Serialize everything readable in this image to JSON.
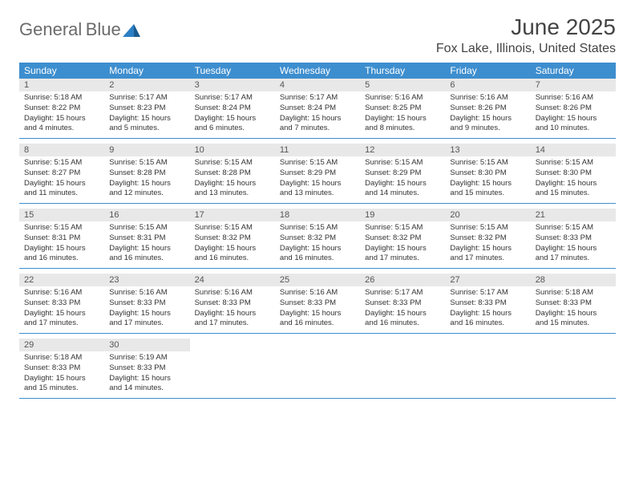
{
  "logo": {
    "line1": "General",
    "line2": "Blue"
  },
  "title": "June 2025",
  "location": "Fox Lake, Illinois, United States",
  "colors": {
    "header_bg": "#3d8ecf",
    "header_fg": "#ffffff",
    "daynum_bg": "#e8e8e8",
    "daynum_fg": "#555555",
    "divider": "#3d8ecf",
    "text": "#333333",
    "logo_gray": "#6b6b6b",
    "logo_blue": "#2b7fc4"
  },
  "weekdays": [
    "Sunday",
    "Monday",
    "Tuesday",
    "Wednesday",
    "Thursday",
    "Friday",
    "Saturday"
  ],
  "weeks": [
    [
      {
        "n": "1",
        "sr": "5:18 AM",
        "ss": "8:22 PM",
        "dl": "15 hours and 4 minutes."
      },
      {
        "n": "2",
        "sr": "5:17 AM",
        "ss": "8:23 PM",
        "dl": "15 hours and 5 minutes."
      },
      {
        "n": "3",
        "sr": "5:17 AM",
        "ss": "8:24 PM",
        "dl": "15 hours and 6 minutes."
      },
      {
        "n": "4",
        "sr": "5:17 AM",
        "ss": "8:24 PM",
        "dl": "15 hours and 7 minutes."
      },
      {
        "n": "5",
        "sr": "5:16 AM",
        "ss": "8:25 PM",
        "dl": "15 hours and 8 minutes."
      },
      {
        "n": "6",
        "sr": "5:16 AM",
        "ss": "8:26 PM",
        "dl": "15 hours and 9 minutes."
      },
      {
        "n": "7",
        "sr": "5:16 AM",
        "ss": "8:26 PM",
        "dl": "15 hours and 10 minutes."
      }
    ],
    [
      {
        "n": "8",
        "sr": "5:15 AM",
        "ss": "8:27 PM",
        "dl": "15 hours and 11 minutes."
      },
      {
        "n": "9",
        "sr": "5:15 AM",
        "ss": "8:28 PM",
        "dl": "15 hours and 12 minutes."
      },
      {
        "n": "10",
        "sr": "5:15 AM",
        "ss": "8:28 PM",
        "dl": "15 hours and 13 minutes."
      },
      {
        "n": "11",
        "sr": "5:15 AM",
        "ss": "8:29 PM",
        "dl": "15 hours and 13 minutes."
      },
      {
        "n": "12",
        "sr": "5:15 AM",
        "ss": "8:29 PM",
        "dl": "15 hours and 14 minutes."
      },
      {
        "n": "13",
        "sr": "5:15 AM",
        "ss": "8:30 PM",
        "dl": "15 hours and 15 minutes."
      },
      {
        "n": "14",
        "sr": "5:15 AM",
        "ss": "8:30 PM",
        "dl": "15 hours and 15 minutes."
      }
    ],
    [
      {
        "n": "15",
        "sr": "5:15 AM",
        "ss": "8:31 PM",
        "dl": "15 hours and 16 minutes."
      },
      {
        "n": "16",
        "sr": "5:15 AM",
        "ss": "8:31 PM",
        "dl": "15 hours and 16 minutes."
      },
      {
        "n": "17",
        "sr": "5:15 AM",
        "ss": "8:32 PM",
        "dl": "15 hours and 16 minutes."
      },
      {
        "n": "18",
        "sr": "5:15 AM",
        "ss": "8:32 PM",
        "dl": "15 hours and 16 minutes."
      },
      {
        "n": "19",
        "sr": "5:15 AM",
        "ss": "8:32 PM",
        "dl": "15 hours and 17 minutes."
      },
      {
        "n": "20",
        "sr": "5:15 AM",
        "ss": "8:32 PM",
        "dl": "15 hours and 17 minutes."
      },
      {
        "n": "21",
        "sr": "5:15 AM",
        "ss": "8:33 PM",
        "dl": "15 hours and 17 minutes."
      }
    ],
    [
      {
        "n": "22",
        "sr": "5:16 AM",
        "ss": "8:33 PM",
        "dl": "15 hours and 17 minutes."
      },
      {
        "n": "23",
        "sr": "5:16 AM",
        "ss": "8:33 PM",
        "dl": "15 hours and 17 minutes."
      },
      {
        "n": "24",
        "sr": "5:16 AM",
        "ss": "8:33 PM",
        "dl": "15 hours and 17 minutes."
      },
      {
        "n": "25",
        "sr": "5:16 AM",
        "ss": "8:33 PM",
        "dl": "15 hours and 16 minutes."
      },
      {
        "n": "26",
        "sr": "5:17 AM",
        "ss": "8:33 PM",
        "dl": "15 hours and 16 minutes."
      },
      {
        "n": "27",
        "sr": "5:17 AM",
        "ss": "8:33 PM",
        "dl": "15 hours and 16 minutes."
      },
      {
        "n": "28",
        "sr": "5:18 AM",
        "ss": "8:33 PM",
        "dl": "15 hours and 15 minutes."
      }
    ],
    [
      {
        "n": "29",
        "sr": "5:18 AM",
        "ss": "8:33 PM",
        "dl": "15 hours and 15 minutes."
      },
      {
        "n": "30",
        "sr": "5:19 AM",
        "ss": "8:33 PM",
        "dl": "15 hours and 14 minutes."
      },
      {
        "empty": true
      },
      {
        "empty": true
      },
      {
        "empty": true
      },
      {
        "empty": true
      },
      {
        "empty": true
      }
    ]
  ],
  "labels": {
    "sunrise": "Sunrise:",
    "sunset": "Sunset:",
    "daylight": "Daylight:"
  }
}
